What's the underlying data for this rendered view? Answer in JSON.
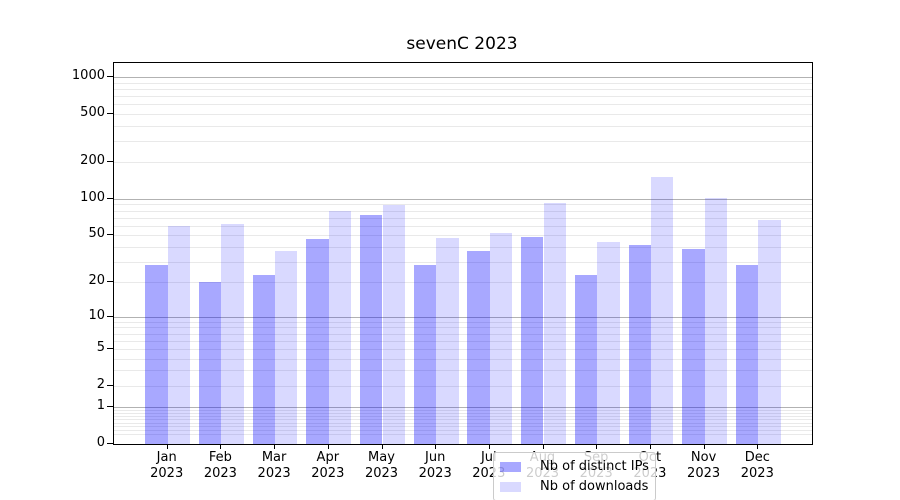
{
  "title": "sevenC 2023",
  "chart_data": {
    "type": "bar",
    "title": "sevenC 2023",
    "categories": [
      "Jan 2023",
      "Feb 2023",
      "Mar 2023",
      "Apr 2023",
      "May 2023",
      "Jun 2023",
      "Jul 2023",
      "Aug 2023",
      "Sep 2023",
      "Oct 2023",
      "Nov 2023",
      "Dec 2023"
    ],
    "series": [
      {
        "name": "Nb of distinct IPs",
        "color": "rgba(0,0,255,0.34)",
        "values": [
          28,
          20,
          23,
          46,
          74,
          28,
          37,
          48,
          23,
          41,
          38,
          28
        ]
      },
      {
        "name": "Nb of downloads",
        "color": "rgba(0,0,255,0.15)",
        "values": [
          60,
          62,
          37,
          79,
          89,
          47,
          52,
          92,
          44,
          150,
          101,
          67
        ]
      }
    ],
    "xlabel": "",
    "ylabel": "",
    "y_axis": {
      "scale": "symlog-log1p",
      "tick_labels": [
        0,
        1,
        2,
        5,
        10,
        20,
        50,
        100,
        200,
        500,
        1000
      ],
      "major_grid_values": [
        1,
        10,
        100,
        1000
      ],
      "minor_grid_values": [
        0.2,
        0.3,
        0.4,
        0.5,
        0.6,
        0.7,
        0.8,
        0.9,
        2,
        3,
        4,
        5,
        6,
        7,
        8,
        9,
        20,
        30,
        40,
        50,
        60,
        70,
        80,
        90,
        200,
        300,
        400,
        500,
        600,
        700,
        800,
        900
      ],
      "ylim": [
        0,
        1300
      ]
    },
    "grid": "on",
    "legend_position": "inside-bottom-center",
    "colors": {
      "major_grid": "#b2b2b2",
      "minor_grid": "#e9e9e9",
      "spine": "#000000",
      "background": "#ffffff"
    }
  }
}
